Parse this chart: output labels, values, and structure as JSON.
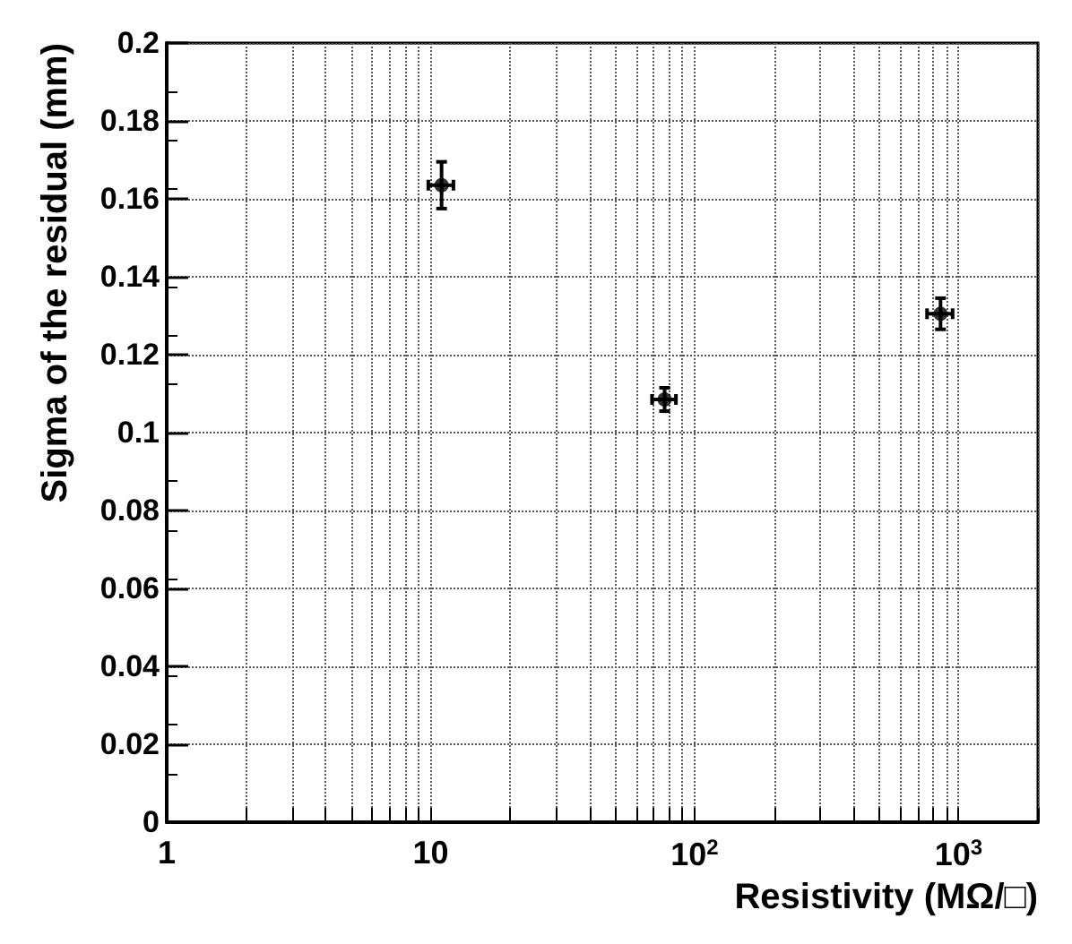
{
  "chart_data": {
    "type": "scatter",
    "xlabel": "Resistivity (MΩ/□)",
    "ylabel": "Sigma of the residual (mm)",
    "x": [
      11,
      77,
      855
    ],
    "values": [
      0.1635,
      0.1085,
      0.1305
    ],
    "errors": [
      0.006,
      0.003,
      0.004
    ],
    "xerrors": [
      1.2,
      8,
      95
    ],
    "color": "#000000",
    "marker": "circle",
    "log": "x",
    "grid": true,
    "xlim": [
      1,
      2000
    ],
    "xticks": [
      1,
      10,
      {
        "value": 100,
        "label": "10$^{2}$"
      },
      {
        "value": 1000,
        "label": "10$^{3}$"
      }
    ],
    "ylim": [
      0,
      0.2
    ],
    "yticks": [
      0,
      0.02,
      0.04,
      0.06,
      0.08,
      0.1,
      0.12,
      0.14,
      0.16,
      0.18,
      0.2
    ]
  }
}
